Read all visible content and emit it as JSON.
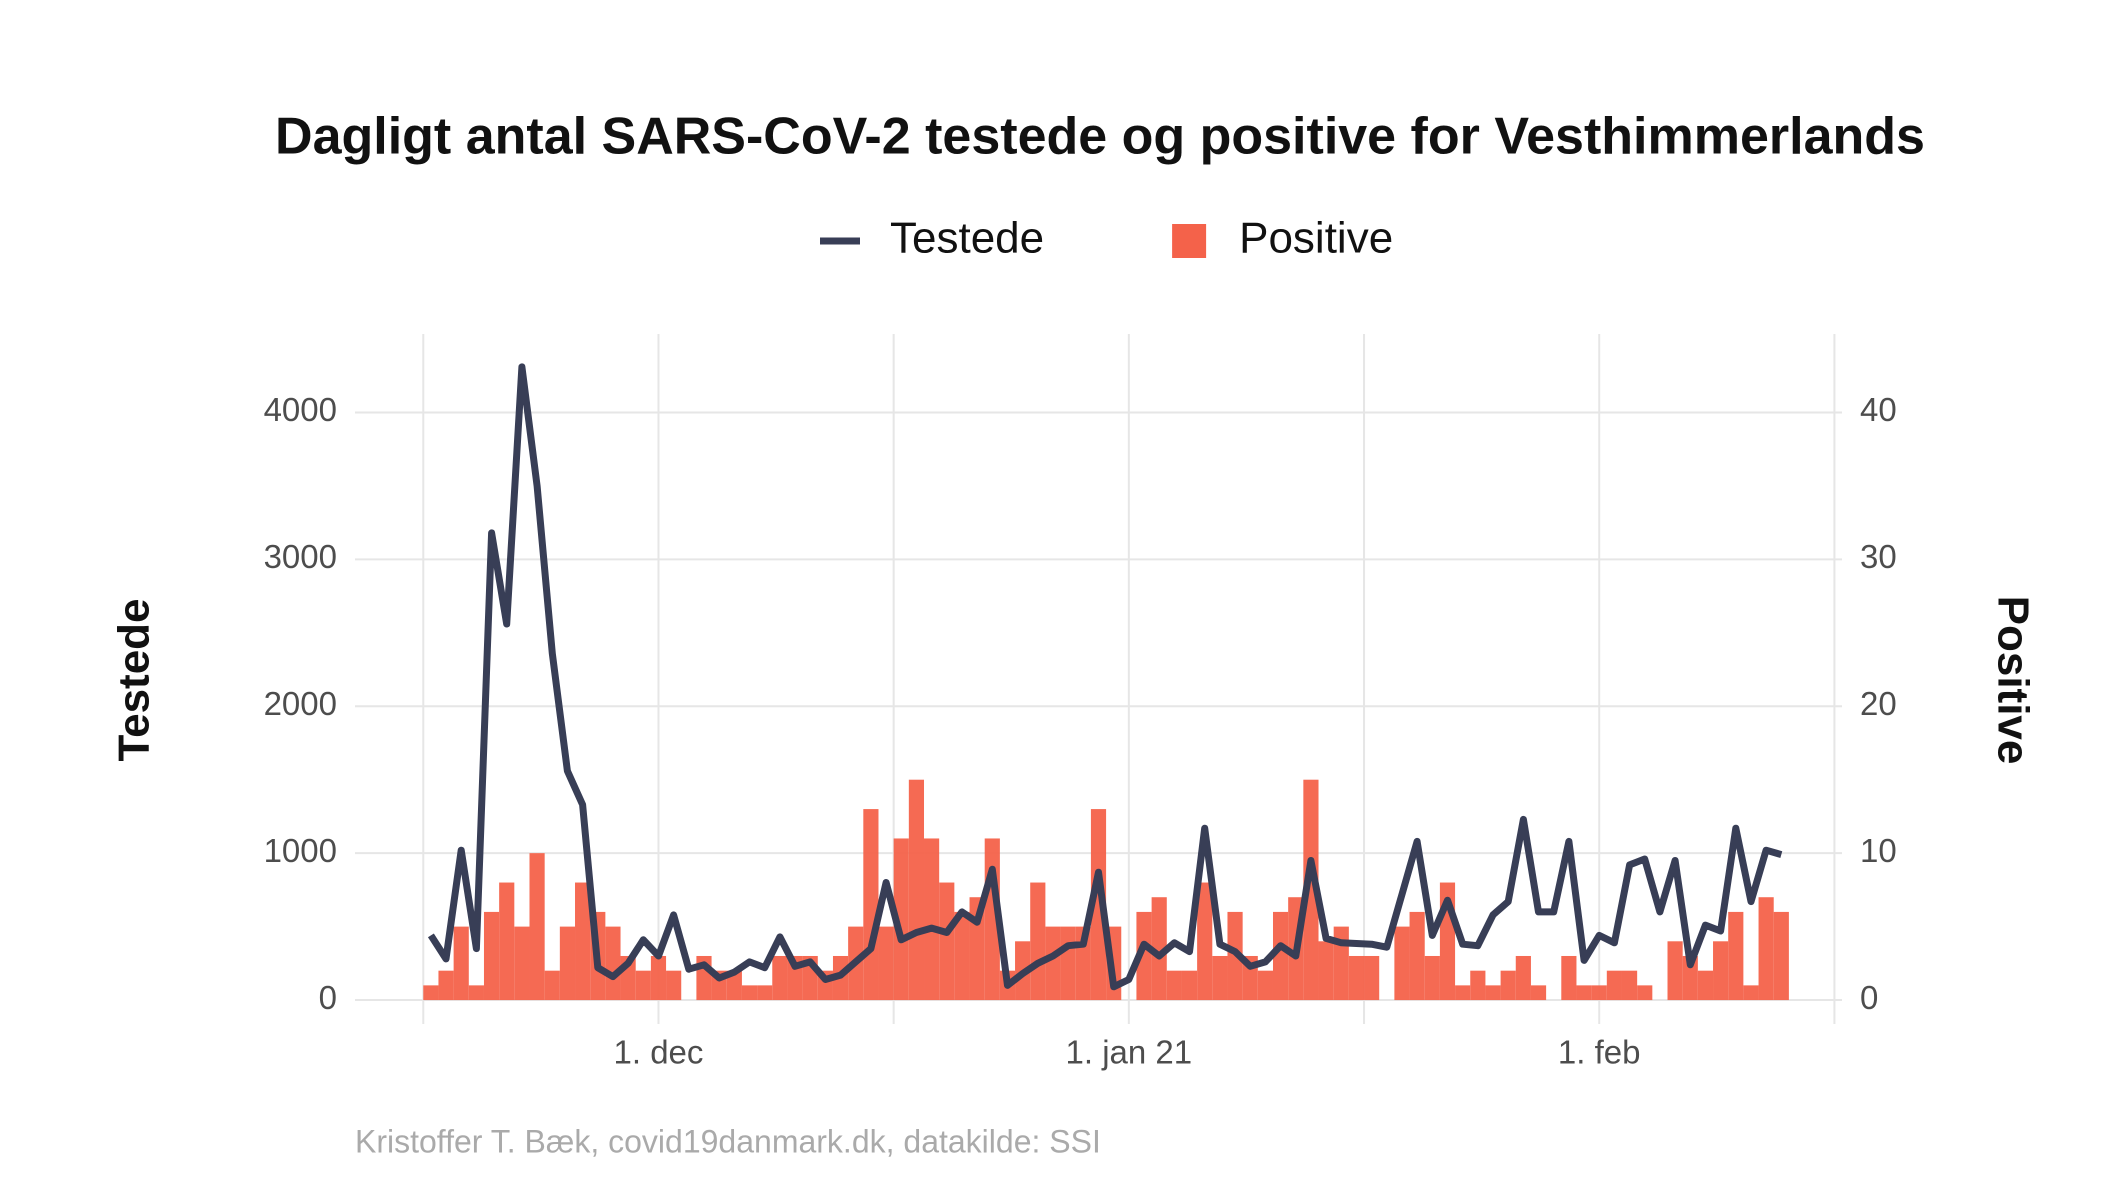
{
  "chart_data": {
    "type": "combo",
    "title": "Dagligt antal SARS-CoV-2 testede og positive for Vesthimmerlands",
    "y_label": "Testede",
    "y2_label": "Positive",
    "caption": "Kristoffer T. Bæk, covid19danmark.dk, datakilde: SSI",
    "x": [
      "2020-11-16",
      "2020-11-17",
      "2020-11-18",
      "2020-11-19",
      "2020-11-20",
      "2020-11-21",
      "2020-11-22",
      "2020-11-23",
      "2020-11-24",
      "2020-11-25",
      "2020-11-26",
      "2020-11-27",
      "2020-11-28",
      "2020-11-29",
      "2020-11-30",
      "2020-12-01",
      "2020-12-02",
      "2020-12-03",
      "2020-12-04",
      "2020-12-05",
      "2020-12-06",
      "2020-12-07",
      "2020-12-08",
      "2020-12-09",
      "2020-12-10",
      "2020-12-11",
      "2020-12-12",
      "2020-12-13",
      "2020-12-14",
      "2020-12-15",
      "2020-12-16",
      "2020-12-17",
      "2020-12-18",
      "2020-12-19",
      "2020-12-20",
      "2020-12-21",
      "2020-12-22",
      "2020-12-23",
      "2020-12-24",
      "2020-12-25",
      "2020-12-26",
      "2020-12-27",
      "2020-12-28",
      "2020-12-29",
      "2020-12-30",
      "2020-12-31",
      "2021-01-01",
      "2021-01-02",
      "2021-01-03",
      "2021-01-04",
      "2021-01-05",
      "2021-01-06",
      "2021-01-07",
      "2021-01-08",
      "2021-01-09",
      "2021-01-10",
      "2021-01-11",
      "2021-01-12",
      "2021-01-13",
      "2021-01-14",
      "2021-01-15",
      "2021-01-16",
      "2021-01-17",
      "2021-01-18",
      "2021-01-19",
      "2021-01-20",
      "2021-01-21",
      "2021-01-22",
      "2021-01-23",
      "2021-01-24",
      "2021-01-25",
      "2021-01-26",
      "2021-01-27",
      "2021-01-28",
      "2021-01-29",
      "2021-01-30",
      "2021-01-31",
      "2021-02-01",
      "2021-02-02",
      "2021-02-03",
      "2021-02-04",
      "2021-02-05",
      "2021-02-06",
      "2021-02-07",
      "2021-02-08",
      "2021-02-09",
      "2021-02-10",
      "2021-02-11",
      "2021-02-12",
      "2021-02-13"
    ],
    "series": [
      {
        "name": "Testede",
        "type": "line",
        "axis": "y",
        "color": "#383e56",
        "values": [
          440,
          280,
          1020,
          350,
          3180,
          2560,
          4310,
          3500,
          2360,
          1560,
          1330,
          220,
          160,
          250,
          410,
          300,
          580,
          210,
          240,
          150,
          190,
          260,
          220,
          430,
          230,
          260,
          140,
          170,
          260,
          350,
          800,
          410,
          460,
          490,
          460,
          600,
          530,
          890,
          100,
          180,
          250,
          300,
          370,
          380,
          870,
          90,
          140,
          380,
          300,
          390,
          330,
          1170,
          380,
          330,
          230,
          260,
          370,
          300,
          950,
          420,
          390,
          385,
          380,
          360,
          720,
          1080,
          440,
          680,
          380,
          370,
          580,
          670,
          1230,
          600,
          600,
          1080,
          270,
          440,
          390,
          920,
          960,
          600,
          950,
          240,
          510,
          470,
          1170,
          670,
          1020,
          990
        ]
      },
      {
        "name": "Positive",
        "type": "bar",
        "axis": "y2",
        "color": "#f4624a",
        "values": [
          1,
          2,
          5,
          1,
          6,
          8,
          5,
          10,
          2,
          5,
          8,
          6,
          5,
          3,
          2,
          3,
          2,
          0,
          3,
          2,
          2,
          1,
          1,
          3,
          3,
          3,
          2,
          3,
          5,
          13,
          5,
          11,
          15,
          11,
          8,
          6,
          7,
          11,
          2,
          4,
          8,
          5,
          5,
          5,
          13,
          5,
          0,
          6,
          7,
          2,
          2,
          8,
          3,
          6,
          3,
          2,
          6,
          7,
          15,
          4,
          5,
          3,
          3,
          0,
          5,
          6,
          3,
          8,
          1,
          2,
          1,
          2,
          3,
          1,
          0,
          3,
          1,
          1,
          2,
          2,
          1,
          0,
          4,
          3,
          2,
          4,
          6,
          1,
          7,
          6
        ]
      }
    ],
    "xlim": [
      "2020-11-11",
      "2021-02-17"
    ],
    "xticks": [
      {
        "value": "2020-12-01",
        "label": "1. dec"
      },
      {
        "value": "2021-01-01",
        "label": "1. jan 21"
      },
      {
        "value": "2021-02-01",
        "label": "1. feb"
      }
    ],
    "ylim": [
      -163,
      4534
    ],
    "yticks": [
      0,
      1000,
      2000,
      3000,
      4000
    ],
    "y2lim": [
      -1.63,
      45.34
    ],
    "y2ticks": [
      0,
      10,
      20,
      30,
      40
    ],
    "grid": true,
    "legend": "top"
  }
}
